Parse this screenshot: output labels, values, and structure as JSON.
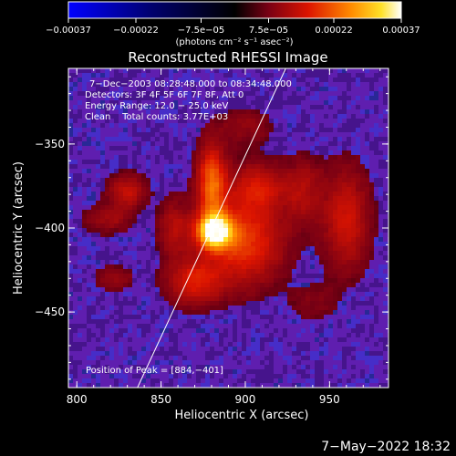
{
  "chart_data": {
    "type": "heatmap",
    "title": "Reconstructed RHESSI Image",
    "xlabel": "Heliocentric X (arcsec)",
    "ylabel": "Heliocentric Y (arcsec)",
    "xlim": [
      795,
      985
    ],
    "ylim": [
      -495,
      -305
    ],
    "x_ticks": [
      800,
      850,
      900,
      950
    ],
    "y_ticks": [
      -350,
      -400,
      -450
    ],
    "x_tick_labels": [
      "800",
      "850",
      "900",
      "950"
    ],
    "y_tick_labels": [
      "−350",
      "−400",
      "−450"
    ],
    "colorbar": {
      "range": [
        -0.00037,
        0.00037
      ],
      "ticks": [
        -0.00037,
        -0.00022,
        -7.5e-05,
        7.5e-05,
        0.00022,
        0.00037
      ],
      "tick_labels": [
        "−0.00037",
        "−0.00022",
        "−7.5e−05",
        "7.5e−05",
        "0.00022",
        "0.00037"
      ],
      "units_label": "(photons cm⁻² s⁻¹ asec⁻²)"
    },
    "annotations": [
      "7−Dec−2003 08:28:48.000 to 08:34:48.000",
      "Detectors: 3F 4F 5F 6F 7F 8F, Att 0",
      "Energy Range: 12.0 − 25.0 keV",
      "Clean    Total counts: 3.77E+03"
    ],
    "peak_label": "Position of Peak = [884,−401]",
    "peak": [
      884,
      -401
    ],
    "limb_line": {
      "x": [
        836,
        924
      ],
      "y": [
        -495,
        -305
      ]
    },
    "sources": [
      {
        "x": 882,
        "y": -402,
        "amp": 1.0,
        "sx": 7,
        "sy": 7
      },
      {
        "x": 880,
        "y": -373,
        "amp": 0.55,
        "sx": 6,
        "sy": 16
      },
      {
        "x": 900,
        "y": -408,
        "amp": 0.45,
        "sx": 16,
        "sy": 18
      },
      {
        "x": 870,
        "y": -432,
        "amp": 0.35,
        "sx": 12,
        "sy": 10
      },
      {
        "x": 908,
        "y": -375,
        "amp": 0.3,
        "sx": 12,
        "sy": 10
      },
      {
        "x": 830,
        "y": -378,
        "amp": 0.3,
        "sx": 8,
        "sy": 7
      },
      {
        "x": 858,
        "y": -400,
        "amp": 0.25,
        "sx": 7,
        "sy": 12
      },
      {
        "x": 818,
        "y": -395,
        "amp": 0.2,
        "sx": 10,
        "sy": 6
      },
      {
        "x": 960,
        "y": -395,
        "amp": 0.32,
        "sx": 10,
        "sy": 22
      },
      {
        "x": 935,
        "y": -378,
        "amp": 0.22,
        "sx": 8,
        "sy": 14
      },
      {
        "x": 822,
        "y": -430,
        "amp": 0.18,
        "sx": 8,
        "sy": 5
      },
      {
        "x": 940,
        "y": -445,
        "amp": 0.12,
        "sx": 10,
        "sy": 8
      },
      {
        "x": 900,
        "y": -340,
        "amp": 0.15,
        "sx": 12,
        "sy": 8
      }
    ]
  },
  "footer": {
    "timestamp": "7−May−2022 18:32"
  }
}
